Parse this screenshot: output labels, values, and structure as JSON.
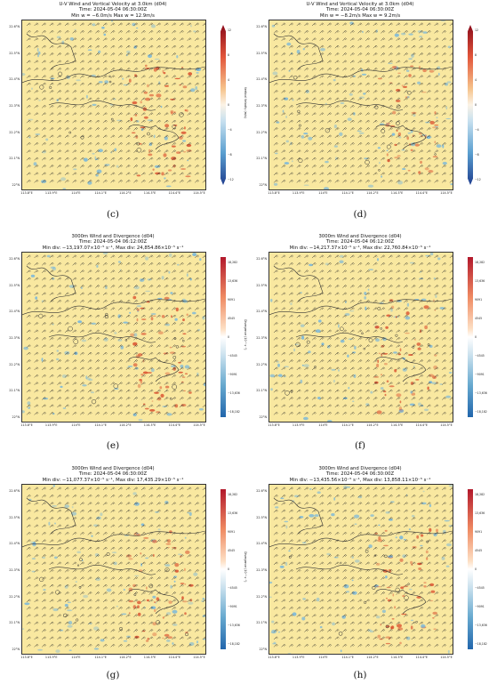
{
  "colors": {
    "map_bg": "#f9e8a0",
    "positive": "#d94a2a",
    "negative": "#6fb3e0",
    "coast": "#333333",
    "barb": "#222222"
  },
  "lat_labels": [
    "22.6°N",
    "22.5°N",
    "22.4°N",
    "22.3°N",
    "22.2°N",
    "22.1°N",
    "22°N"
  ],
  "lon_labels": [
    "113.8°E",
    "113.9°E",
    "114°E",
    "114.1°E",
    "114.2°E",
    "114.3°E",
    "114.4°E",
    "114.5°E"
  ],
  "panels": [
    {
      "id": "c",
      "caption": "(c)",
      "title_lines": [
        "U-V Wind and Vertical Velocity at 3.0km (d04)",
        "Time: 2024-05-04 06:30:00Z",
        "Min w = −6.0m/s Max w = 12.9m/s"
      ],
      "cbar_type": "w",
      "cbar_ticks": [
        "12",
        "8",
        "4",
        "0",
        "−4",
        "−8",
        "−12"
      ],
      "cbar_label": "Vertical Velocity (m/s)"
    },
    {
      "id": "d",
      "caption": "(d)",
      "title_lines": [
        "U-V Wind and Vertical Velocity at 3.0km (d04)",
        "Time: 2024-05-04 06:30:00Z",
        "Min w = −8.2m/s Max w = 9.2m/s"
      ],
      "cbar_type": "w",
      "cbar_ticks": [
        "12",
        "8",
        "4",
        "0",
        "−4",
        "−8",
        "−12"
      ],
      "cbar_label": "Vertical Velocity (m/s)"
    },
    {
      "id": "e",
      "caption": "(e)",
      "title_lines": [
        "3000m Wind and Divergence (d04)",
        "Time: 2024-05-04 06:12:00Z",
        "Min div: −13,197.07×10⁻⁵ s⁻¹, Max div: 24,854.86×10⁻⁵ s⁻¹"
      ],
      "cbar_type": "div",
      "cbar_ticks": [
        "18,282",
        "13,636",
        "9091",
        "4545",
        "0",
        "−4545",
        "−9091",
        "−13,636",
        "−18,182"
      ],
      "cbar_label": "Divergence (10⁻⁵ s⁻¹)"
    },
    {
      "id": "f",
      "caption": "(f)",
      "title_lines": [
        "3000m Wind and Divergence (d04)",
        "Time: 2024-05-04 06:12:00Z",
        "Min div: −14,217.37×10⁻⁵ s⁻¹, Max div: 22,760.84×10⁻⁵ s⁻¹"
      ],
      "cbar_type": "div",
      "cbar_ticks": [
        "18,282",
        "13,636",
        "9091",
        "4545",
        "0",
        "−4545",
        "−9091",
        "−13,636",
        "−18,182"
      ],
      "cbar_label": "Divergence (10⁻⁵ s⁻¹)"
    },
    {
      "id": "g",
      "caption": "(g)",
      "title_lines": [
        "3000m Wind and Divergence (d04)",
        "Time: 2024-05-04 06:30:00Z",
        "Min div: −11,077.37×10⁻⁵ s⁻¹, Max div: 17,435.29×10⁻⁵ s⁻¹"
      ],
      "cbar_type": "div",
      "cbar_ticks": [
        "18,282",
        "13,636",
        "9091",
        "4545",
        "0",
        "−4545",
        "−9091",
        "−13,636",
        "−18,182"
      ],
      "cbar_label": "Divergence (10⁻⁵ s⁻¹)"
    },
    {
      "id": "h",
      "caption": "(h)",
      "title_lines": [
        "3000m Wind and Divergence (d04)",
        "Time: 2024-05-04 06:30:00Z",
        "Min div: −13,435.56×10⁻⁵ s⁻¹, Max div: 13,858.11×10⁻⁵ s⁻¹"
      ],
      "cbar_type": "div",
      "cbar_ticks": [
        "18,282",
        "13,636",
        "9091",
        "4545",
        "0",
        "−4545",
        "−9091",
        "−13,636",
        "−18,182"
      ],
      "cbar_label": "Divergence (10⁻⁵ s⁻¹)"
    }
  ]
}
